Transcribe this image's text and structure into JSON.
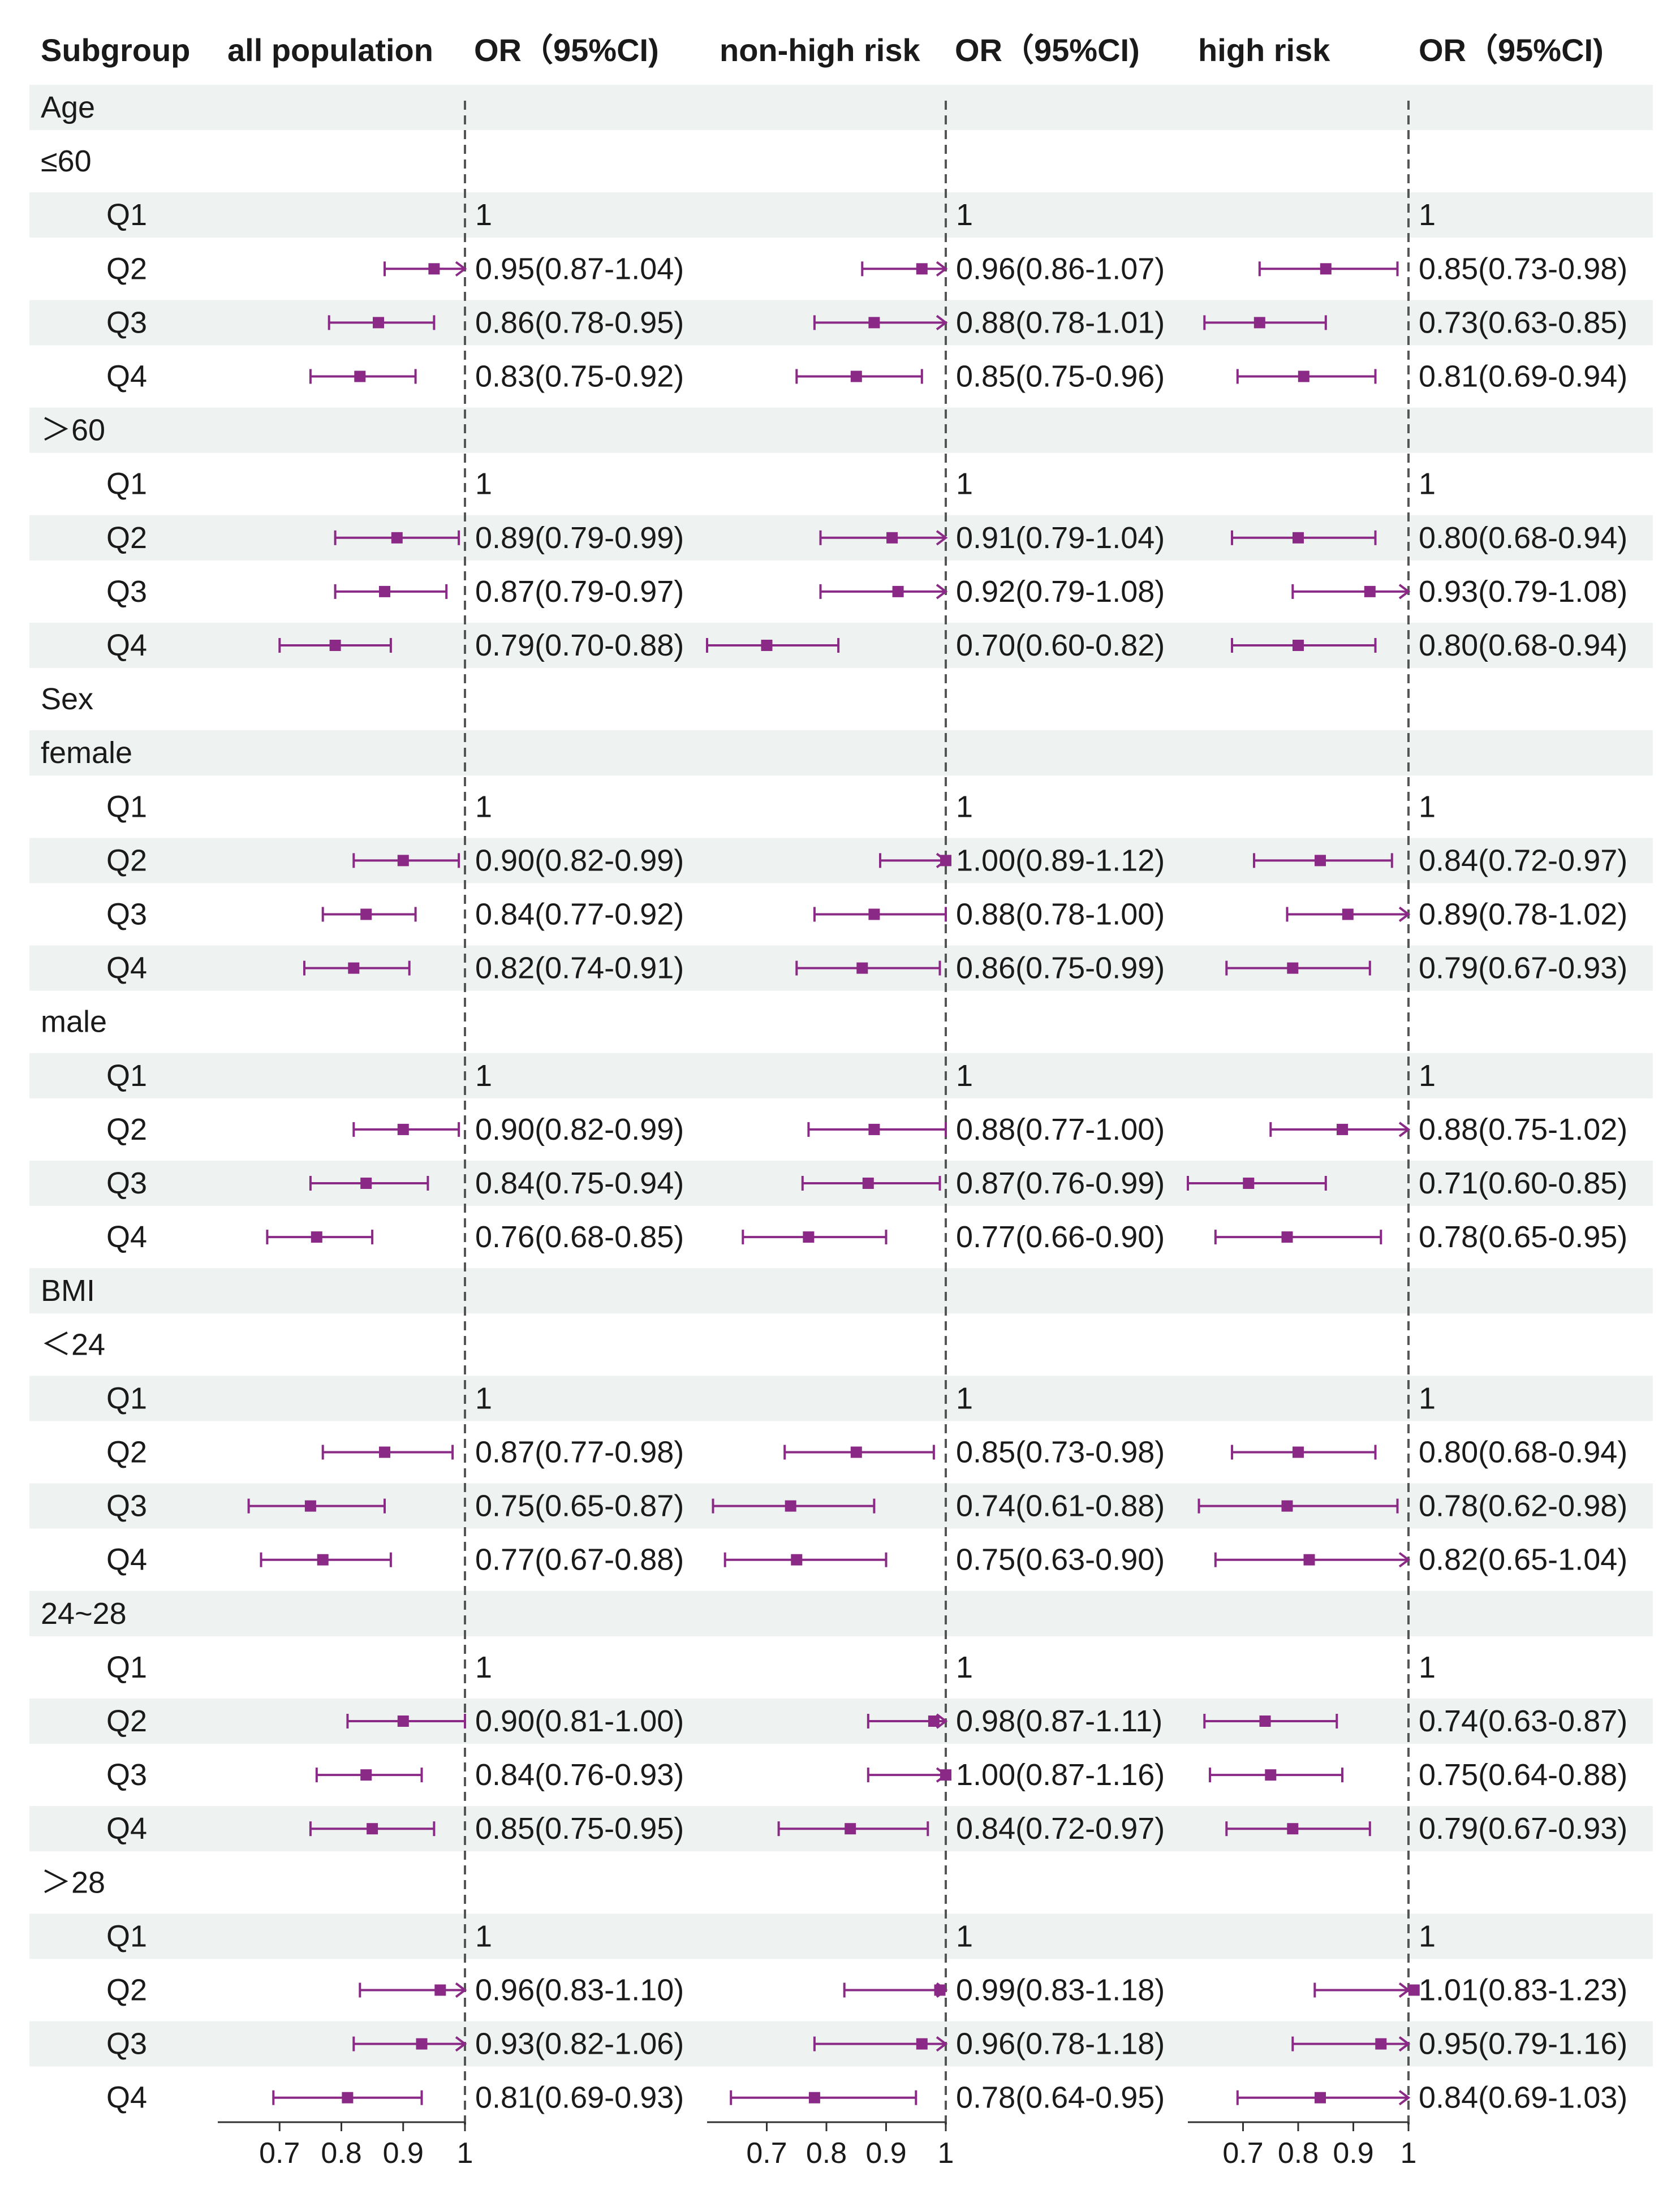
{
  "chart_data": {
    "type": "forest",
    "x_axis": {
      "lim": [
        0.6,
        1.0
      ],
      "ticks": [
        "0.7",
        "0.8",
        "0.9",
        "1"
      ]
    },
    "reference_line": 1,
    "colors": {
      "marker": "#8a2a86",
      "stripe": "#eef2f0",
      "ref_line": "#555555",
      "axis": "#333333"
    },
    "header": {
      "subgroup": "Subgroup",
      "groups": [
        {
          "name": "all population",
          "or_label": "OR（95%CI)"
        },
        {
          "name": "non-high risk",
          "or_label": "OR（95%CI)"
        },
        {
          "name": "high risk",
          "or_label": "OR（95%CI)"
        }
      ]
    },
    "rows": [
      {
        "label": "Age",
        "level": 0
      },
      {
        "label": "≤60",
        "level": 1
      },
      {
        "label": "Q1",
        "level": 2,
        "ref": "1"
      },
      {
        "label": "Q2",
        "level": 2,
        "est": [
          [
            0.95,
            0.87,
            1.04
          ],
          [
            0.96,
            0.86,
            1.07
          ],
          [
            0.85,
            0.73,
            0.98
          ]
        ]
      },
      {
        "label": "Q3",
        "level": 2,
        "est": [
          [
            0.86,
            0.78,
            0.95
          ],
          [
            0.88,
            0.78,
            1.01
          ],
          [
            0.73,
            0.63,
            0.85
          ]
        ]
      },
      {
        "label": "Q4",
        "level": 2,
        "est": [
          [
            0.83,
            0.75,
            0.92
          ],
          [
            0.85,
            0.75,
            0.96
          ],
          [
            0.81,
            0.69,
            0.94
          ]
        ]
      },
      {
        "label": "＞60",
        "level": 1
      },
      {
        "label": "Q1",
        "level": 2,
        "ref": "1"
      },
      {
        "label": "Q2",
        "level": 2,
        "est": [
          [
            0.89,
            0.79,
            0.99
          ],
          [
            0.91,
            0.79,
            1.04
          ],
          [
            0.8,
            0.68,
            0.94
          ]
        ]
      },
      {
        "label": "Q3",
        "level": 2,
        "est": [
          [
            0.87,
            0.79,
            0.97
          ],
          [
            0.92,
            0.79,
            1.08
          ],
          [
            0.93,
            0.79,
            1.08
          ]
        ]
      },
      {
        "label": "Q4",
        "level": 2,
        "est": [
          [
            0.79,
            0.7,
            0.88
          ],
          [
            0.7,
            0.6,
            0.82
          ],
          [
            0.8,
            0.68,
            0.94
          ]
        ]
      },
      {
        "label": "Sex",
        "level": 0
      },
      {
        "label": "female",
        "level": 1
      },
      {
        "label": "Q1",
        "level": 2,
        "ref": "1"
      },
      {
        "label": "Q2",
        "level": 2,
        "est": [
          [
            0.9,
            0.82,
            0.99
          ],
          [
            1.0,
            0.89,
            1.12
          ],
          [
            0.84,
            0.72,
            0.97
          ]
        ]
      },
      {
        "label": "Q3",
        "level": 2,
        "est": [
          [
            0.84,
            0.77,
            0.92
          ],
          [
            0.88,
            0.78,
            1.0
          ],
          [
            0.89,
            0.78,
            1.02
          ]
        ]
      },
      {
        "label": "Q4",
        "level": 2,
        "est": [
          [
            0.82,
            0.74,
            0.91
          ],
          [
            0.86,
            0.75,
            0.99
          ],
          [
            0.79,
            0.67,
            0.93
          ]
        ]
      },
      {
        "label": "male",
        "level": 1
      },
      {
        "label": "Q1",
        "level": 2,
        "ref": "1"
      },
      {
        "label": "Q2",
        "level": 2,
        "est": [
          [
            0.9,
            0.82,
            0.99
          ],
          [
            0.88,
            0.77,
            1.0
          ],
          [
            0.88,
            0.75,
            1.02
          ]
        ]
      },
      {
        "label": "Q3",
        "level": 2,
        "est": [
          [
            0.84,
            0.75,
            0.94
          ],
          [
            0.87,
            0.76,
            0.99
          ],
          [
            0.71,
            0.6,
            0.85
          ]
        ]
      },
      {
        "label": "Q4",
        "level": 2,
        "est": [
          [
            0.76,
            0.68,
            0.85
          ],
          [
            0.77,
            0.66,
            0.9
          ],
          [
            0.78,
            0.65,
            0.95
          ]
        ]
      },
      {
        "label": "BMI",
        "level": 0
      },
      {
        "label": "＜24",
        "level": 1
      },
      {
        "label": "Q1",
        "level": 2,
        "ref": "1"
      },
      {
        "label": "Q2",
        "level": 2,
        "est": [
          [
            0.87,
            0.77,
            0.98
          ],
          [
            0.85,
            0.73,
            0.98
          ],
          [
            0.8,
            0.68,
            0.94
          ]
        ]
      },
      {
        "label": "Q3",
        "level": 2,
        "est": [
          [
            0.75,
            0.65,
            0.87
          ],
          [
            0.74,
            0.61,
            0.88
          ],
          [
            0.78,
            0.62,
            0.98
          ]
        ]
      },
      {
        "label": "Q4",
        "level": 2,
        "est": [
          [
            0.77,
            0.67,
            0.88
          ],
          [
            0.75,
            0.63,
            0.9
          ],
          [
            0.82,
            0.65,
            1.04
          ]
        ]
      },
      {
        "label": "24~28",
        "level": 1
      },
      {
        "label": "Q1",
        "level": 2,
        "ref": "1"
      },
      {
        "label": "Q2",
        "level": 2,
        "est": [
          [
            0.9,
            0.81,
            1.0
          ],
          [
            0.98,
            0.87,
            1.11
          ],
          [
            0.74,
            0.63,
            0.87
          ]
        ]
      },
      {
        "label": "Q3",
        "level": 2,
        "est": [
          [
            0.84,
            0.76,
            0.93
          ],
          [
            1.0,
            0.87,
            1.16
          ],
          [
            0.75,
            0.64,
            0.88
          ]
        ]
      },
      {
        "label": "Q4",
        "level": 2,
        "est": [
          [
            0.85,
            0.75,
            0.95
          ],
          [
            0.84,
            0.72,
            0.97
          ],
          [
            0.79,
            0.67,
            0.93
          ]
        ]
      },
      {
        "label": "＞28",
        "level": 1
      },
      {
        "label": "Q1",
        "level": 2,
        "ref": "1"
      },
      {
        "label": "Q2",
        "level": 2,
        "est": [
          [
            0.96,
            0.83,
            1.1
          ],
          [
            0.99,
            0.83,
            1.18
          ],
          [
            1.01,
            0.83,
            1.23
          ]
        ]
      },
      {
        "label": "Q3",
        "level": 2,
        "est": [
          [
            0.93,
            0.82,
            1.06
          ],
          [
            0.96,
            0.78,
            1.18
          ],
          [
            0.95,
            0.79,
            1.16
          ]
        ]
      },
      {
        "label": "Q4",
        "level": 2,
        "est": [
          [
            0.81,
            0.69,
            0.93
          ],
          [
            0.78,
            0.64,
            0.95
          ],
          [
            0.84,
            0.69,
            1.03
          ]
        ]
      }
    ]
  }
}
